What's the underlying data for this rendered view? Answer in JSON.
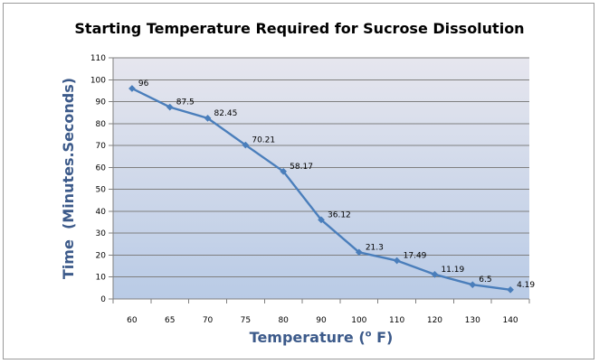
{
  "chart_data": {
    "type": "line",
    "title": "Starting Temperature Required for Sucrose Dissolution",
    "xlabel": "Temperature",
    "xlabel_unit_sup": "o",
    "xlabel_unit": "F",
    "ylabel": "Time  (Minutes.Seconds)",
    "categories": [
      "60",
      "65",
      "70",
      "75",
      "80",
      "90",
      "100",
      "110",
      "120",
      "130",
      "140"
    ],
    "series": [
      {
        "values": [
          96,
          87.5,
          82.45,
          70.21,
          58.17,
          36.12,
          21.3,
          17.49,
          11.19,
          6.5,
          4.19
        ],
        "labels": [
          "96",
          "87.5",
          "82.45",
          "70.21",
          "58.17",
          "36.12",
          "21.3",
          "17.49",
          "11.19",
          "6.5",
          "4.19"
        ],
        "color": "#4a7ebb"
      }
    ],
    "ylim": [
      0,
      110
    ],
    "y_ticks": [
      "0",
      "10",
      "20",
      "30",
      "40",
      "50",
      "60",
      "70",
      "80",
      "90",
      "100",
      "110"
    ],
    "grid": true,
    "legend": "none",
    "background_gradient": [
      "#e6e6ee",
      "#b9cbe6"
    ]
  }
}
